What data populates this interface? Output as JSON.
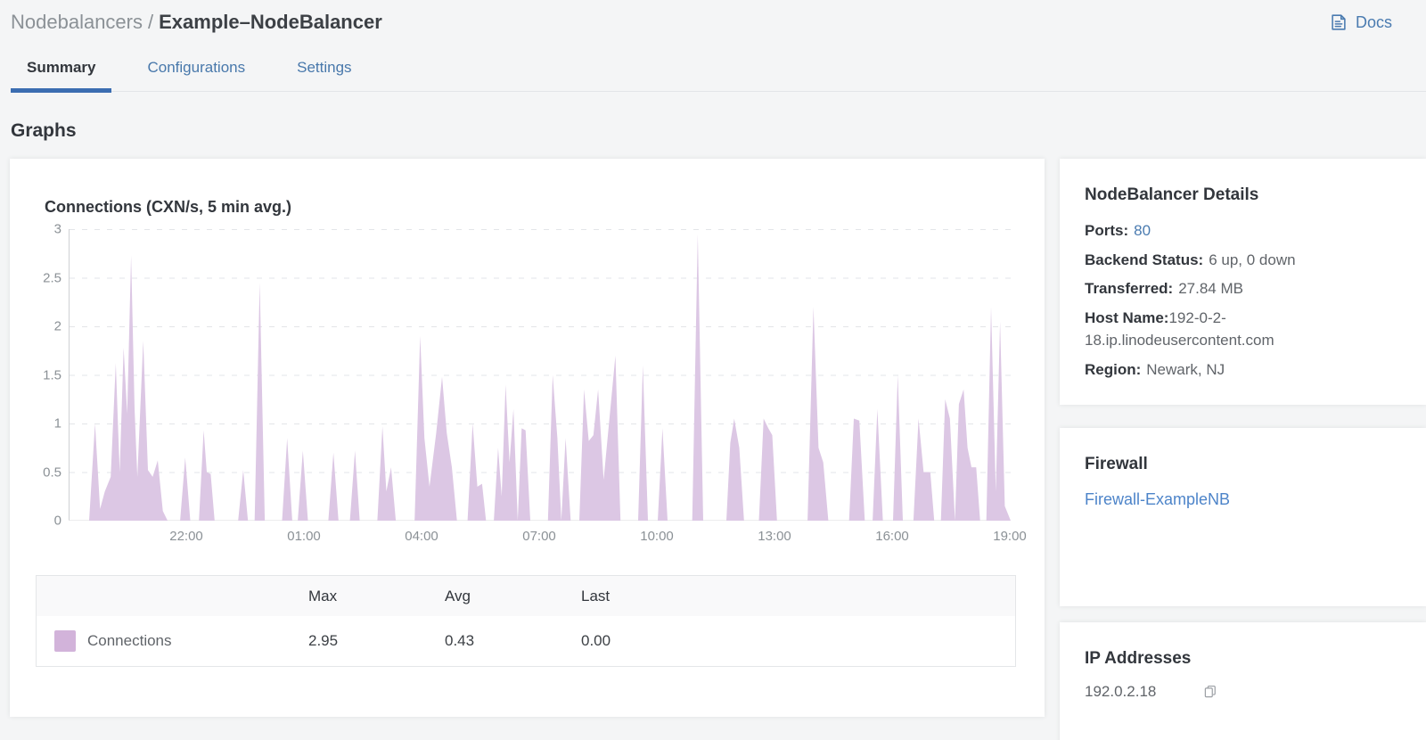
{
  "breadcrumb": {
    "section": "Nodebalancers",
    "separator": "/",
    "current": "Example–NodeBalancer"
  },
  "header": {
    "docs_label": "Docs"
  },
  "tabs": {
    "items": [
      {
        "label": "Summary"
      },
      {
        "label": "Configurations"
      },
      {
        "label": "Settings"
      }
    ],
    "active": "Summary"
  },
  "graphs_heading": "Graphs",
  "chart_data": {
    "type": "area",
    "title": "Connections (CXN/s, 5 min avg.)",
    "xlabel": "",
    "ylabel": "",
    "ylim": [
      0,
      3
    ],
    "y_ticks": [
      0,
      0.5,
      1,
      1.5,
      2,
      2.5,
      3
    ],
    "grid": {
      "horizontal": "dashed",
      "color": "#e3e5e8",
      "vertical": false
    },
    "legend_position": "bottom-table",
    "x_axis": {
      "window_hours": 24,
      "start_time": "19:00",
      "end_time": "19:00",
      "tick_labels": [
        {
          "t": 3,
          "label": "22:00"
        },
        {
          "t": 6,
          "label": "01:00"
        },
        {
          "t": 9,
          "label": "04:00"
        },
        {
          "t": 12,
          "label": "07:00"
        },
        {
          "t": 15,
          "label": "10:00"
        },
        {
          "t": 18,
          "label": "13:00"
        },
        {
          "t": 21,
          "label": "16:00"
        },
        {
          "t": 24,
          "label": "19:00"
        }
      ]
    },
    "series": [
      {
        "name": "Connections",
        "unit": "CXN/s",
        "swatch_color": "#d2b3da",
        "fill_color": "#dcc7e4",
        "stats": {
          "max": 2.95,
          "avg": 0.43,
          "last": 0.0
        },
        "points_hours_value": [
          [
            0,
            0
          ],
          [
            0.5,
            0
          ],
          [
            0.65,
            1.0
          ],
          [
            0.78,
            0.12
          ],
          [
            0.9,
            0.3
          ],
          [
            1.05,
            0.45
          ],
          [
            1.18,
            1.62
          ],
          [
            1.28,
            0.5
          ],
          [
            1.38,
            1.78
          ],
          [
            1.47,
            1.1
          ],
          [
            1.57,
            2.73
          ],
          [
            1.66,
            1.15
          ],
          [
            1.73,
            0.45
          ],
          [
            1.88,
            1.85
          ],
          [
            2.0,
            0.52
          ],
          [
            2.12,
            0.45
          ],
          [
            2.25,
            0.62
          ],
          [
            2.38,
            0.1
          ],
          [
            2.5,
            0
          ],
          [
            2.82,
            0
          ],
          [
            2.95,
            0.65
          ],
          [
            3.08,
            0
          ],
          [
            3.3,
            0
          ],
          [
            3.42,
            0.93
          ],
          [
            3.5,
            0.5
          ],
          [
            3.6,
            0.48
          ],
          [
            3.7,
            0
          ],
          [
            4.3,
            0
          ],
          [
            4.43,
            0.52
          ],
          [
            4.55,
            0
          ],
          [
            4.72,
            0
          ],
          [
            4.85,
            2.45
          ],
          [
            4.98,
            0
          ],
          [
            5.42,
            0
          ],
          [
            5.55,
            0.85
          ],
          [
            5.68,
            0
          ],
          [
            5.82,
            0
          ],
          [
            5.95,
            0.72
          ],
          [
            6.08,
            0
          ],
          [
            6.6,
            0
          ],
          [
            6.73,
            0.7
          ],
          [
            6.86,
            0
          ],
          [
            7.15,
            0
          ],
          [
            7.28,
            0.72
          ],
          [
            7.4,
            0
          ],
          [
            7.85,
            0
          ],
          [
            7.98,
            0.97
          ],
          [
            8.08,
            0.3
          ],
          [
            8.2,
            0.55
          ],
          [
            8.32,
            0
          ],
          [
            8.8,
            0
          ],
          [
            8.94,
            1.9
          ],
          [
            9.05,
            0.85
          ],
          [
            9.18,
            0.35
          ],
          [
            9.35,
            0.9
          ],
          [
            9.5,
            1.48
          ],
          [
            9.62,
            0.9
          ],
          [
            9.75,
            0.55
          ],
          [
            9.88,
            0
          ],
          [
            10.15,
            0
          ],
          [
            10.28,
            1.0
          ],
          [
            10.4,
            0.35
          ],
          [
            10.52,
            0.38
          ],
          [
            10.62,
            0
          ],
          [
            10.82,
            0
          ],
          [
            10.93,
            0.75
          ],
          [
            11.02,
            0.25
          ],
          [
            11.12,
            1.4
          ],
          [
            11.22,
            0.6
          ],
          [
            11.32,
            1.15
          ],
          [
            11.43,
            0
          ],
          [
            11.53,
            0.95
          ],
          [
            11.63,
            0.93
          ],
          [
            11.75,
            0
          ],
          [
            12.2,
            0
          ],
          [
            12.32,
            1.5
          ],
          [
            12.44,
            0.85
          ],
          [
            12.54,
            0
          ],
          [
            12.65,
            0.85
          ],
          [
            12.78,
            0
          ],
          [
            13.0,
            0
          ],
          [
            13.12,
            1.35
          ],
          [
            13.24,
            0.82
          ],
          [
            13.36,
            0.88
          ],
          [
            13.48,
            1.35
          ],
          [
            13.62,
            0.42
          ],
          [
            13.92,
            1.7
          ],
          [
            14.05,
            0
          ],
          [
            14.5,
            0
          ],
          [
            14.62,
            1.6
          ],
          [
            14.75,
            0
          ],
          [
            15.0,
            0
          ],
          [
            15.12,
            0.95
          ],
          [
            15.25,
            0
          ],
          [
            15.88,
            0
          ],
          [
            16.02,
            2.95
          ],
          [
            16.16,
            0
          ],
          [
            16.75,
            0
          ],
          [
            16.85,
            0.8
          ],
          [
            16.95,
            1.05
          ],
          [
            17.08,
            0.75
          ],
          [
            17.2,
            0
          ],
          [
            17.58,
            0
          ],
          [
            17.7,
            1.05
          ],
          [
            17.82,
            0.95
          ],
          [
            17.92,
            0.88
          ],
          [
            18.04,
            0
          ],
          [
            18.82,
            0
          ],
          [
            18.97,
            2.2
          ],
          [
            19.1,
            0.75
          ],
          [
            19.22,
            0.6
          ],
          [
            19.35,
            0
          ],
          [
            19.88,
            0
          ],
          [
            20.0,
            1.05
          ],
          [
            20.14,
            1.03
          ],
          [
            20.28,
            0
          ],
          [
            20.48,
            0
          ],
          [
            20.6,
            1.15
          ],
          [
            20.74,
            0
          ],
          [
            21.0,
            0
          ],
          [
            21.12,
            1.5
          ],
          [
            21.25,
            0
          ],
          [
            21.52,
            0
          ],
          [
            21.65,
            1.05
          ],
          [
            21.78,
            0.5
          ],
          [
            21.95,
            0.5
          ],
          [
            22.05,
            0
          ],
          [
            22.22,
            0
          ],
          [
            22.33,
            1.25
          ],
          [
            22.45,
            1.05
          ],
          [
            22.58,
            0
          ],
          [
            22.68,
            1.2
          ],
          [
            22.8,
            1.35
          ],
          [
            22.9,
            0.75
          ],
          [
            23.0,
            0.55
          ],
          [
            23.12,
            0.55
          ],
          [
            23.22,
            0
          ],
          [
            23.38,
            0
          ],
          [
            23.5,
            2.2
          ],
          [
            23.62,
            0.3
          ],
          [
            23.73,
            2.05
          ],
          [
            23.85,
            0.15
          ],
          [
            24,
            0
          ]
        ]
      }
    ]
  },
  "legend_table": {
    "headers": [
      "Max",
      "Avg",
      "Last"
    ],
    "rows": [
      {
        "label": "Connections",
        "max": "2.95",
        "avg": "0.43",
        "last": "0.00"
      }
    ]
  },
  "details_panel": {
    "title": "NodeBalancer Details",
    "rows": [
      {
        "label": "Ports:",
        "value": "80"
      },
      {
        "label": "Backend Status:",
        "value": "6 up, 0 down"
      },
      {
        "label": "Transferred:",
        "value": "27.84 MB"
      },
      {
        "label": "Host Name:",
        "value": "192-0-2-18.ip.linodeusercontent.com"
      },
      {
        "label": "Region:",
        "value": "Newark, NJ"
      }
    ]
  },
  "firewall_panel": {
    "title": "Firewall",
    "link_label": "Firewall-ExampleNB"
  },
  "ip_panel": {
    "title": "IP Addresses",
    "addresses": [
      {
        "ip": "192.0.2.18"
      }
    ]
  },
  "colors": {
    "link_blue": "#4a7bb0",
    "firewall_link_blue": "#4d84c9",
    "active_tab_underline": "#3b6db1",
    "text_dark": "#32363c",
    "text_gray": "#606469",
    "breadcrumb_gray": "#8b9196",
    "page_bg": "#f4f5f6",
    "card_bg": "#ffffff",
    "series_purple": "#d2b3da"
  }
}
